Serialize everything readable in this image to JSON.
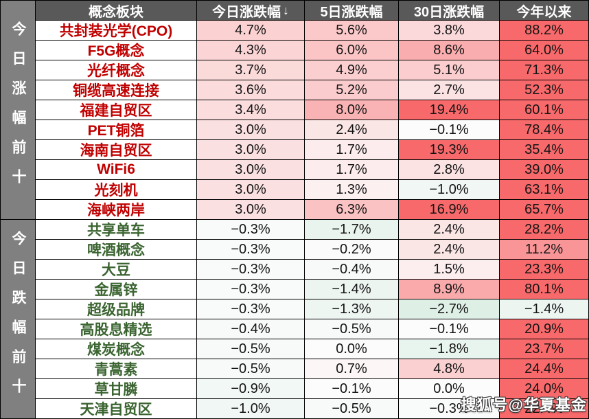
{
  "sidebar": {
    "gainers_label": "今日涨幅前十",
    "losers_label": "今日跌幅前十"
  },
  "header": {
    "sort_arrow": "↓"
  },
  "watermark": {
    "text": "搜狐号@华夏基金"
  },
  "colors": {
    "header_bg": "#595959",
    "sidebar_bg": "#808080",
    "gainer_name_text": "#C00000",
    "loser_name_text": "#3A6430",
    "heat_max_red": "#F8696B",
    "heat_min_green": "#DBEEE4",
    "heat_mid_white": "#FCFCFC",
    "grid_line": "#000000"
  },
  "chart_data": {
    "type": "heatmap",
    "unit": "percent",
    "columns": [
      "概念板块",
      "今日涨跌幅",
      "5日涨跌幅",
      "30日涨跌幅",
      "今年以来"
    ],
    "sorted_by": "今日涨跌幅 descending",
    "cell_shading_rule": "red intensity increases with positive value (saturates ~16%+ at heat_max_red); light green tint for negative values; white at 0",
    "groups": [
      {
        "label": "今日涨幅前十",
        "rows": [
          [
            "共封装光学(CPO)",
            4.7,
            5.6,
            3.8,
            88.2
          ],
          [
            "F5G概念",
            4.3,
            6.0,
            8.6,
            64.0
          ],
          [
            "光纤概念",
            3.7,
            4.9,
            5.1,
            71.3
          ],
          [
            "铜缆高速连接",
            3.6,
            5.2,
            2.7,
            52.3
          ],
          [
            "福建自贸区",
            3.4,
            8.0,
            19.4,
            60.1
          ],
          [
            "PET铜箔",
            3.0,
            2.4,
            -0.1,
            78.4
          ],
          [
            "海南自贸区",
            3.0,
            1.7,
            19.3,
            35.4
          ],
          [
            "WiFi6",
            3.0,
            1.7,
            2.8,
            39.0
          ],
          [
            "光刻机",
            3.0,
            1.3,
            -1.0,
            63.1
          ],
          [
            "海峡两岸",
            3.0,
            6.3,
            16.9,
            65.7
          ]
        ]
      },
      {
        "label": "今日跌幅前十",
        "rows": [
          [
            "共享单车",
            -0.3,
            -1.7,
            2.4,
            28.2
          ],
          [
            "啤酒概念",
            -0.3,
            -0.2,
            2.4,
            11.2
          ],
          [
            "大豆",
            -0.3,
            -0.4,
            1.5,
            23.3
          ],
          [
            "金属锌",
            -0.3,
            -1.4,
            8.9,
            80.1
          ],
          [
            "超级品牌",
            -0.3,
            -1.3,
            -2.7,
            -1.4
          ],
          [
            "高股息精选",
            -0.4,
            -0.5,
            -0.1,
            20.9
          ],
          [
            "煤炭概念",
            -0.5,
            0.0,
            -1.8,
            23.7
          ],
          [
            "青蒿素",
            -0.5,
            0.7,
            4.8,
            24.4
          ],
          [
            "草甘膦",
            -0.9,
            -0.1,
            0.0,
            24.0
          ],
          [
            "天津自贸区",
            -1.0,
            -0.5,
            -0.3,
            22.4
          ]
        ]
      }
    ]
  }
}
